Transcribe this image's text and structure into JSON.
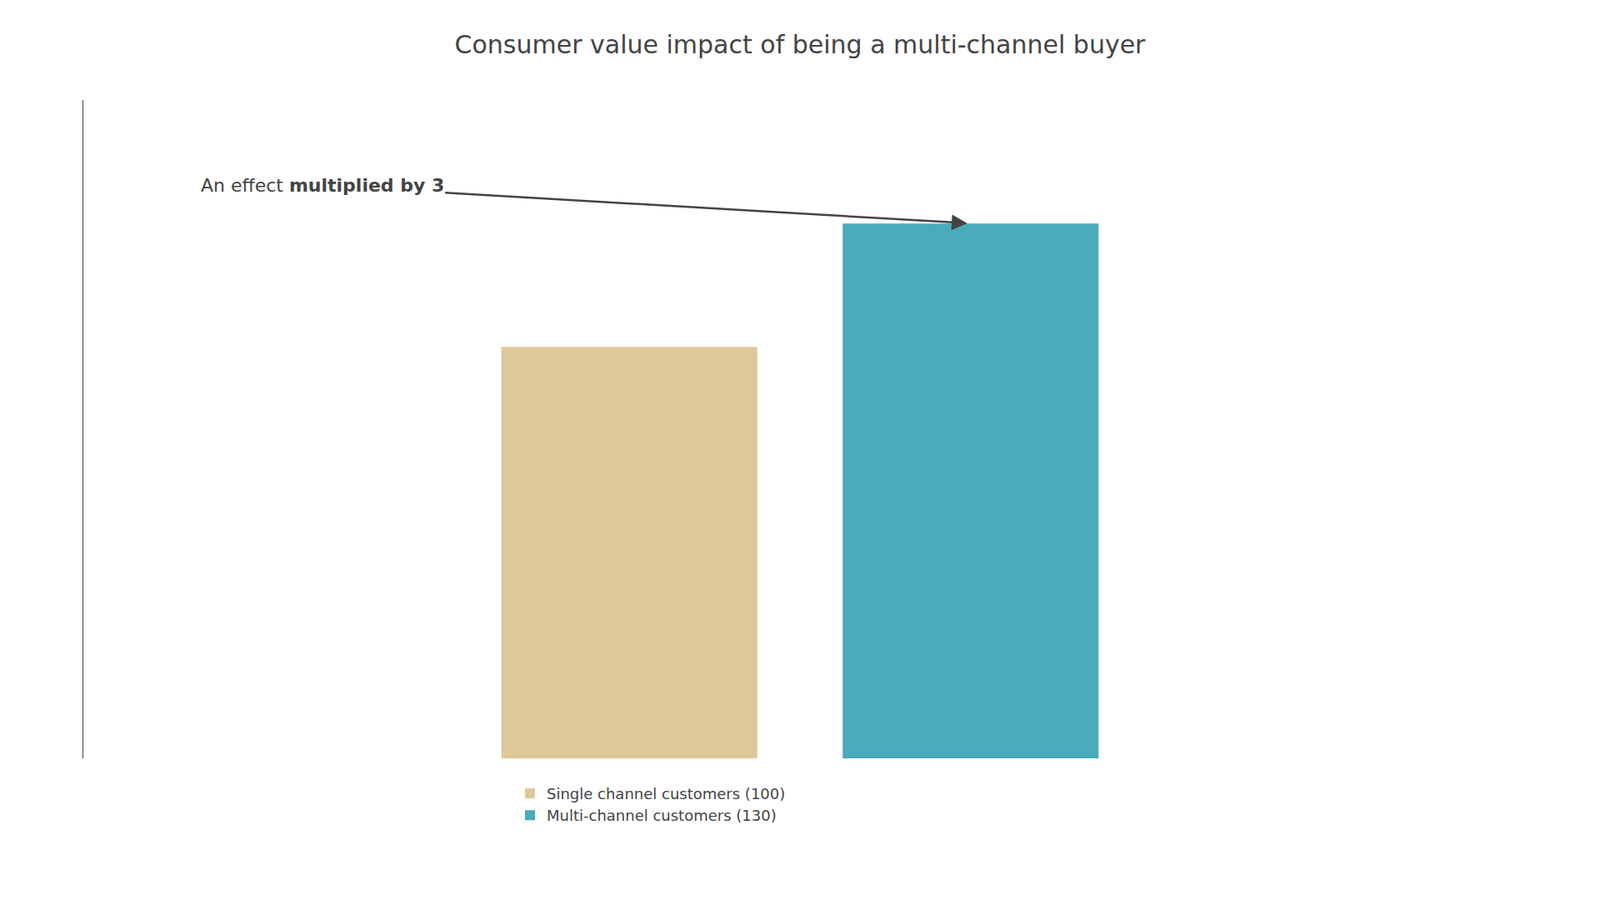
{
  "chart_data": {
    "type": "bar",
    "title": "Consumer value impact of being a multi-channel buyer",
    "annotations": [
      "An effect",
      "multiplied by 3"
    ],
    "categories": [
      null,
      null
    ],
    "series": [
      {
        "name": "Single channel customers (100)",
        "color": "#DFC898",
        "values": [
          100,
          null
        ]
      },
      {
        "name": "Multi-channel customers (130)",
        "color": "#4AABBB",
        "values": [
          null,
          130
        ]
      }
    ],
    "ylim": [
      0,
      160
    ],
    "grid": false,
    "tick_labels": false,
    "legend": "bottom"
  }
}
